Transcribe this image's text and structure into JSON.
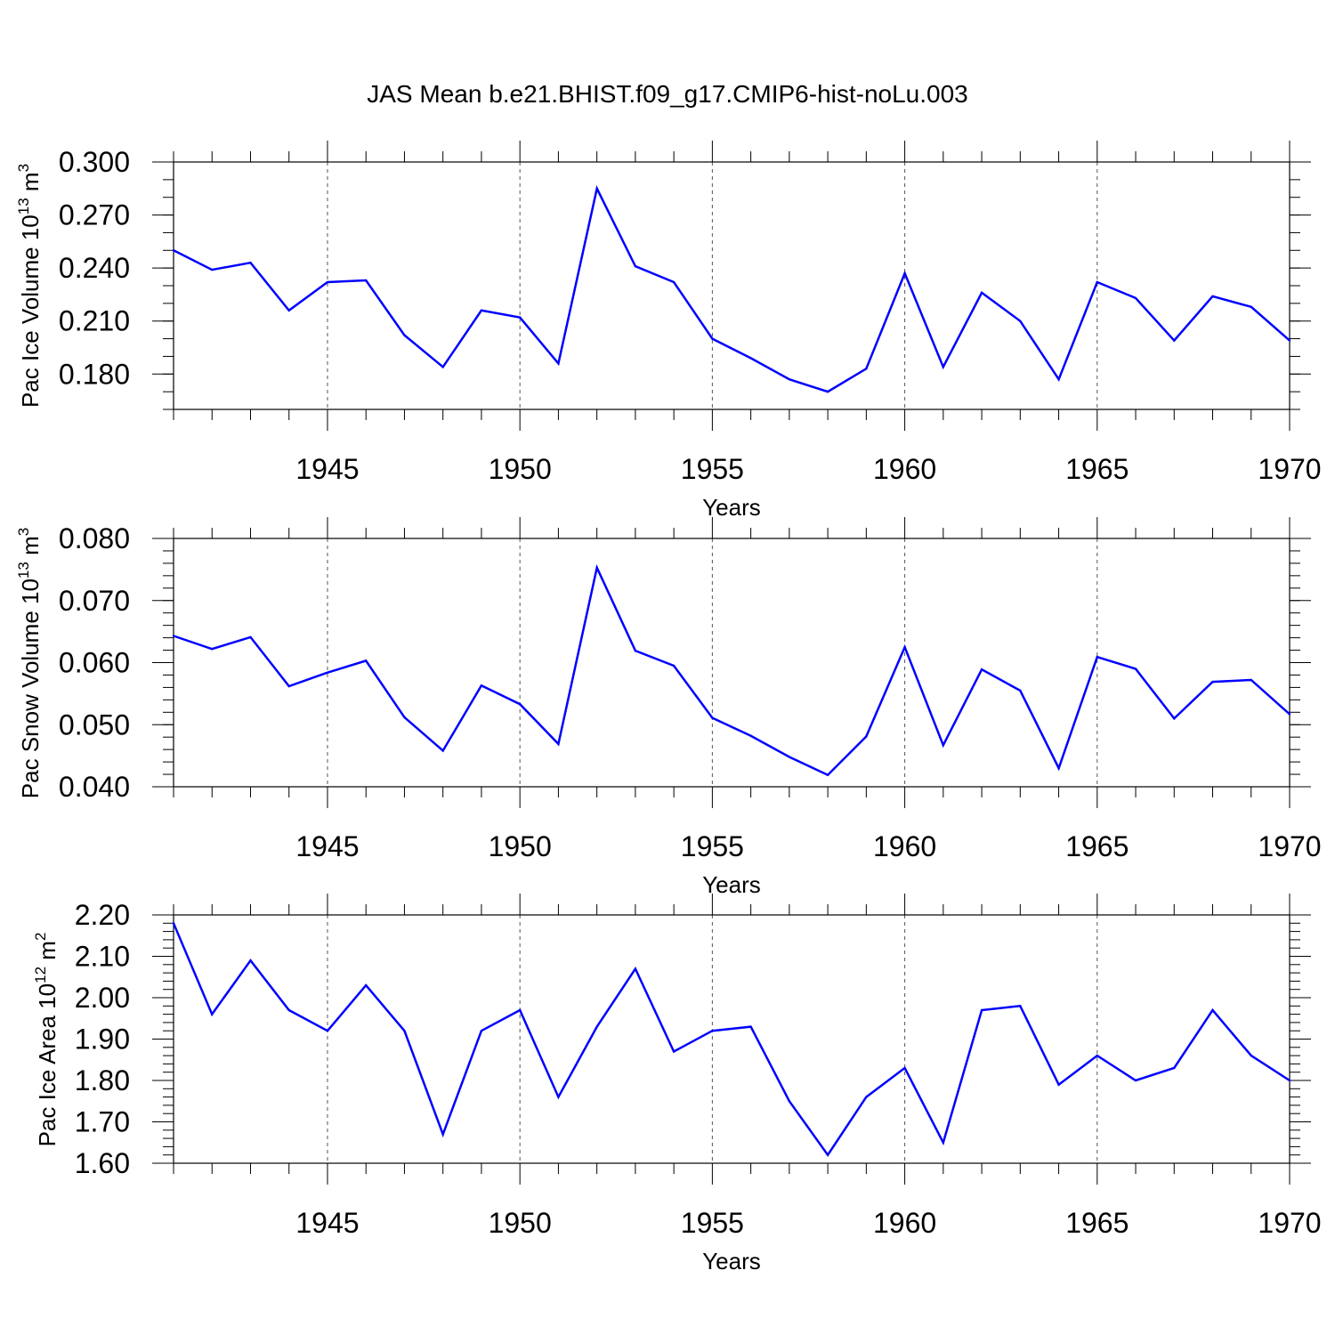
{
  "title": "JAS Mean b.e21.BHIST.f09_g17.CMIP6-hist-noLu.003",
  "chart_data": [
    {
      "type": "line",
      "xlabel": "Years",
      "ylabel_main": "Pac Ice Volume 10",
      "ylabel_exp": "13",
      "ylabel_unit": " m",
      "ylabel_unit_exp": "3",
      "xlim": [
        1941,
        1970
      ],
      "ylim": [
        0.16,
        0.3
      ],
      "yticks": [
        0.18,
        0.21,
        0.24,
        0.27,
        0.3
      ],
      "ytick_labels": [
        "0.180",
        "0.210",
        "0.240",
        "0.270",
        "0.300"
      ],
      "minor_ystep": 0.01,
      "xticks": [
        1945,
        1950,
        1955,
        1960,
        1965,
        1970
      ],
      "xtick_labels": [
        "1945",
        "1950",
        "1955",
        "1960",
        "1965",
        "1970"
      ],
      "grid": "vertical dashed at major x ticks",
      "color": "#0000ff",
      "x": [
        1941,
        1942,
        1943,
        1944,
        1945,
        1946,
        1947,
        1948,
        1949,
        1950,
        1951,
        1952,
        1953,
        1954,
        1955,
        1956,
        1957,
        1958,
        1959,
        1960,
        1961,
        1962,
        1963,
        1964,
        1965,
        1966,
        1967,
        1968,
        1969,
        1970
      ],
      "values": [
        0.25,
        0.239,
        0.243,
        0.216,
        0.232,
        0.233,
        0.202,
        0.184,
        0.216,
        0.212,
        0.186,
        0.285,
        0.241,
        0.232,
        0.2,
        0.189,
        0.177,
        0.17,
        0.183,
        0.237,
        0.184,
        0.226,
        0.21,
        0.177,
        0.232,
        0.223,
        0.199,
        0.224,
        0.218,
        0.199
      ]
    },
    {
      "type": "line",
      "xlabel": "Years",
      "ylabel_main": "Pac Snow Volume 10",
      "ylabel_exp": "13",
      "ylabel_unit": " m",
      "ylabel_unit_exp": "3",
      "xlim": [
        1941,
        1970
      ],
      "ylim": [
        0.04,
        0.08
      ],
      "yticks": [
        0.04,
        0.05,
        0.06,
        0.07,
        0.08
      ],
      "ytick_labels": [
        "0.040",
        "0.050",
        "0.060",
        "0.070",
        "0.080"
      ],
      "minor_ystep": 0.002,
      "xticks": [
        1945,
        1950,
        1955,
        1960,
        1965,
        1970
      ],
      "xtick_labels": [
        "1945",
        "1950",
        "1955",
        "1960",
        "1965",
        "1970"
      ],
      "grid": "vertical dashed at major x ticks",
      "color": "#0000ff",
      "x": [
        1941,
        1942,
        1943,
        1944,
        1945,
        1946,
        1947,
        1948,
        1949,
        1950,
        1951,
        1952,
        1953,
        1954,
        1955,
        1956,
        1957,
        1958,
        1959,
        1960,
        1961,
        1962,
        1963,
        1964,
        1965,
        1966,
        1967,
        1968,
        1969,
        1970
      ],
      "values": [
        0.0643,
        0.0622,
        0.0641,
        0.0562,
        0.0584,
        0.0603,
        0.0512,
        0.0458,
        0.0563,
        0.0533,
        0.0469,
        0.0753,
        0.0619,
        0.0595,
        0.0511,
        0.0482,
        0.0448,
        0.0419,
        0.0481,
        0.0625,
        0.0467,
        0.0589,
        0.0555,
        0.043,
        0.0609,
        0.059,
        0.051,
        0.0569,
        0.0572,
        0.0517
      ]
    },
    {
      "type": "line",
      "xlabel": "Years",
      "ylabel_main": "Pac Ice Area 10",
      "ylabel_exp": "12",
      "ylabel_unit": " m",
      "ylabel_unit_exp": "2",
      "xlim": [
        1941,
        1970
      ],
      "ylim": [
        1.6,
        2.2
      ],
      "yticks": [
        1.6,
        1.7,
        1.8,
        1.9,
        2.0,
        2.1,
        2.2
      ],
      "ytick_labels": [
        "1.60",
        "1.70",
        "1.80",
        "1.90",
        "2.00",
        "2.10",
        "2.20"
      ],
      "minor_ystep": 0.02,
      "xticks": [
        1945,
        1950,
        1955,
        1960,
        1965,
        1970
      ],
      "xtick_labels": [
        "1945",
        "1950",
        "1955",
        "1960",
        "1965",
        "1970"
      ],
      "grid": "vertical dashed at major x ticks",
      "color": "#0000ff",
      "x": [
        1941,
        1942,
        1943,
        1944,
        1945,
        1946,
        1947,
        1948,
        1949,
        1950,
        1951,
        1952,
        1953,
        1954,
        1955,
        1956,
        1957,
        1958,
        1959,
        1960,
        1961,
        1962,
        1963,
        1964,
        1965,
        1966,
        1967,
        1968,
        1969,
        1970
      ],
      "values": [
        2.18,
        1.96,
        2.09,
        1.97,
        1.92,
        2.03,
        1.92,
        1.67,
        1.92,
        1.97,
        1.76,
        1.93,
        2.07,
        1.87,
        1.92,
        1.93,
        1.75,
        1.62,
        1.76,
        1.83,
        1.65,
        1.97,
        1.98,
        1.79,
        1.86,
        1.8,
        1.83,
        1.97,
        1.86,
        1.8
      ]
    }
  ]
}
